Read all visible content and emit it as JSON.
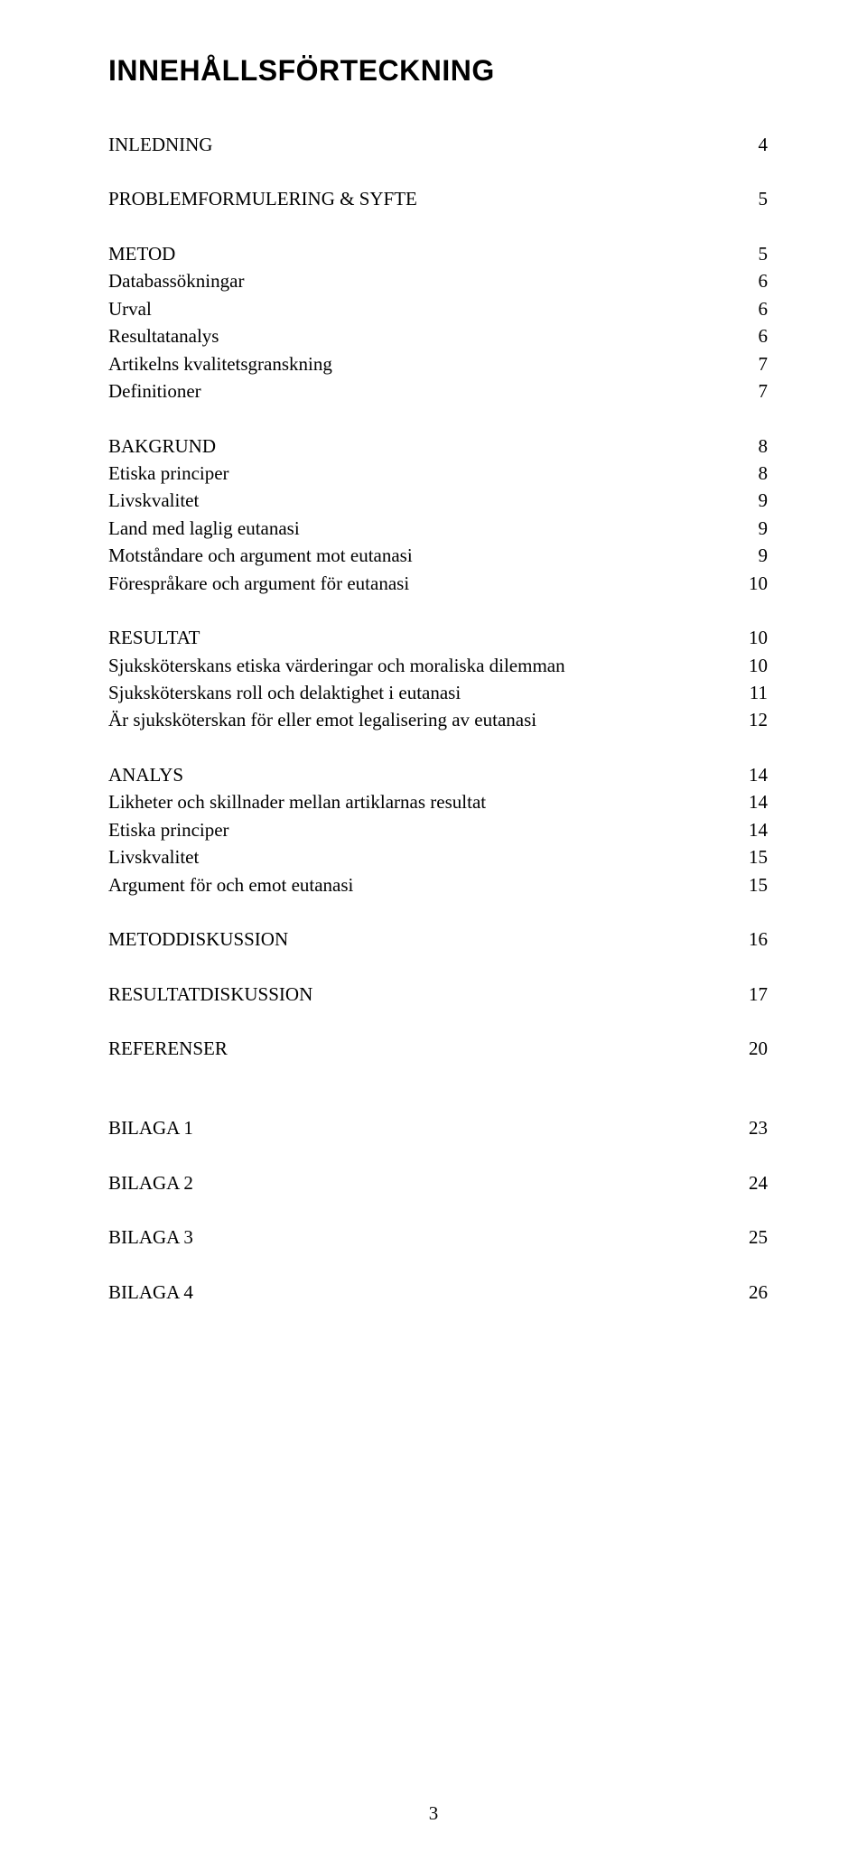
{
  "title": "INNEHÅLLSFÖRTECKNING",
  "sections": {
    "inledning": {
      "label": "INLEDNING",
      "page": "4"
    },
    "problem": {
      "label": "PROBLEMFORMULERING & SYFTE",
      "page": "5"
    },
    "metod": {
      "label": "METOD",
      "page": "5",
      "items": [
        {
          "label": "Databassökningar",
          "page": "6"
        },
        {
          "label": "Urval",
          "page": "6"
        },
        {
          "label": "Resultatanalys",
          "page": "6"
        },
        {
          "label": "Artikelns kvalitetsgranskning",
          "page": "7"
        },
        {
          "label": "Definitioner",
          "page": "7"
        }
      ]
    },
    "bakgrund": {
      "label": "BAKGRUND",
      "page": "8",
      "items": [
        {
          "label": "Etiska principer",
          "page": "8"
        },
        {
          "label": "Livskvalitet",
          "page": "9"
        },
        {
          "label": "Land med laglig eutanasi",
          "page": "9"
        },
        {
          "label": "Motståndare och argument mot eutanasi",
          "page": "9"
        },
        {
          "label": "Förespråkare och argument för eutanasi",
          "page": "10"
        }
      ]
    },
    "resultat": {
      "label": "RESULTAT",
      "page": "10",
      "items": [
        {
          "label": "Sjuksköterskans etiska värderingar och moraliska dilemman",
          "page": "10"
        },
        {
          "label": "Sjuksköterskans roll och delaktighet i eutanasi",
          "page": "11"
        },
        {
          "label": "Är sjuksköterskan för eller emot legalisering av eutanasi",
          "page": "12"
        }
      ]
    },
    "analys": {
      "label": "ANALYS",
      "page": "14",
      "items": [
        {
          "label": "Likheter och skillnader mellan artiklarnas resultat",
          "page": "14"
        },
        {
          "label": "Etiska principer",
          "page": "14"
        },
        {
          "label": "Livskvalitet",
          "page": "15"
        },
        {
          "label": "Argument för och emot eutanasi",
          "page": "15"
        }
      ]
    },
    "metoddisk": {
      "label": "METODDISKUSSION",
      "page": "16"
    },
    "resultdisk": {
      "label": "RESULTATDISKUSSION",
      "page": "17"
    },
    "referenser": {
      "label": "REFERENSER",
      "page": "20"
    },
    "bilaga1": {
      "label": "BILAGA 1",
      "page": "23"
    },
    "bilaga2": {
      "label": "BILAGA 2",
      "page": "24"
    },
    "bilaga3": {
      "label": "BILAGA 3",
      "page": "25"
    },
    "bilaga4": {
      "label": "BILAGA 4",
      "page": "26"
    }
  },
  "page_number": "3"
}
